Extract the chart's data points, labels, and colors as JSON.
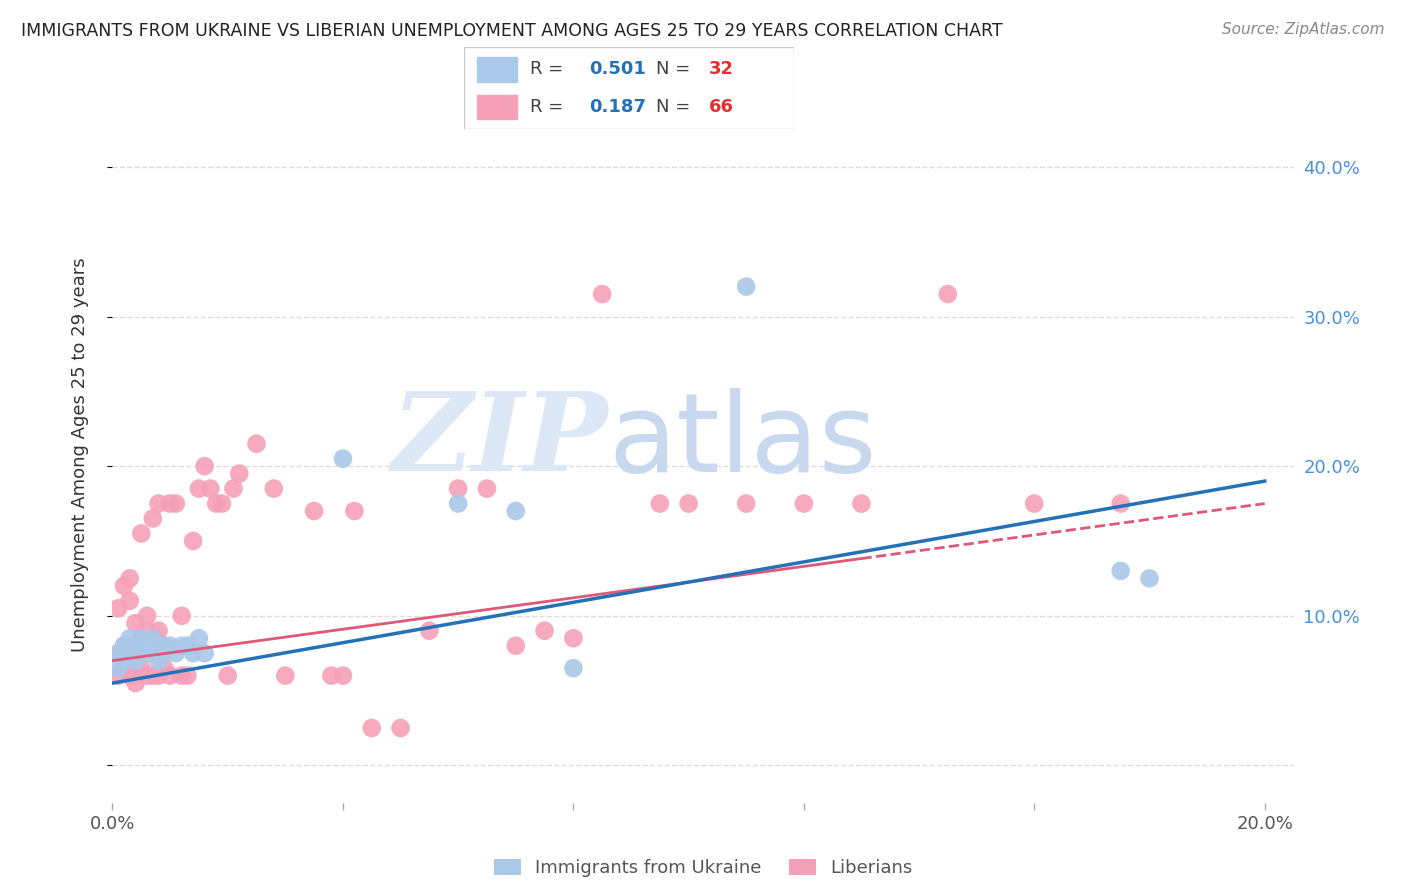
{
  "title": "IMMIGRANTS FROM UKRAINE VS LIBERIAN UNEMPLOYMENT AMONG AGES 25 TO 29 YEARS CORRELATION CHART",
  "source": "Source: ZipAtlas.com",
  "ylabel": "Unemployment Among Ages 25 to 29 years",
  "xlim": [
    0.0,
    0.205
  ],
  "ylim": [
    -0.025,
    0.44
  ],
  "xticks": [
    0.0,
    0.04,
    0.08,
    0.12,
    0.16,
    0.2
  ],
  "yticks": [
    0.0,
    0.1,
    0.2,
    0.3,
    0.4
  ],
  "legend_blue_R": "0.501",
  "legend_blue_N": "32",
  "legend_pink_R": "0.187",
  "legend_pink_N": "66",
  "blue_color": "#aac8e8",
  "pink_color": "#f5a0b8",
  "blue_line_color": "#2471b8",
  "pink_line_color": "#e05878",
  "ukraine_x": [
    0.001,
    0.001,
    0.002,
    0.002,
    0.003,
    0.003,
    0.004,
    0.004,
    0.005,
    0.005,
    0.006,
    0.006,
    0.007,
    0.007,
    0.008,
    0.008,
    0.009,
    0.009,
    0.01,
    0.011,
    0.012,
    0.013,
    0.014,
    0.015,
    0.016,
    0.04,
    0.06,
    0.07,
    0.08,
    0.11,
    0.175,
    0.18
  ],
  "ukraine_y": [
    0.065,
    0.075,
    0.07,
    0.08,
    0.075,
    0.085,
    0.07,
    0.08,
    0.075,
    0.085,
    0.075,
    0.08,
    0.08,
    0.085,
    0.07,
    0.075,
    0.08,
    0.075,
    0.08,
    0.075,
    0.08,
    0.08,
    0.075,
    0.085,
    0.075,
    0.205,
    0.175,
    0.17,
    0.065,
    0.32,
    0.13,
    0.125
  ],
  "liberian_x": [
    0.001,
    0.001,
    0.001,
    0.002,
    0.002,
    0.002,
    0.003,
    0.003,
    0.003,
    0.003,
    0.004,
    0.004,
    0.004,
    0.005,
    0.005,
    0.005,
    0.006,
    0.006,
    0.006,
    0.007,
    0.007,
    0.007,
    0.008,
    0.008,
    0.008,
    0.009,
    0.009,
    0.01,
    0.01,
    0.011,
    0.012,
    0.012,
    0.013,
    0.014,
    0.015,
    0.016,
    0.017,
    0.018,
    0.019,
    0.02,
    0.021,
    0.022,
    0.025,
    0.028,
    0.03,
    0.035,
    0.038,
    0.04,
    0.042,
    0.045,
    0.05,
    0.055,
    0.06,
    0.065,
    0.07,
    0.075,
    0.08,
    0.085,
    0.095,
    0.1,
    0.11,
    0.12,
    0.13,
    0.145,
    0.16,
    0.175
  ],
  "liberian_y": [
    0.06,
    0.075,
    0.105,
    0.065,
    0.08,
    0.12,
    0.06,
    0.075,
    0.11,
    0.125,
    0.055,
    0.075,
    0.095,
    0.065,
    0.085,
    0.155,
    0.06,
    0.09,
    0.1,
    0.06,
    0.085,
    0.165,
    0.06,
    0.09,
    0.175,
    0.065,
    0.08,
    0.06,
    0.175,
    0.175,
    0.06,
    0.1,
    0.06,
    0.15,
    0.185,
    0.2,
    0.185,
    0.175,
    0.175,
    0.06,
    0.185,
    0.195,
    0.215,
    0.185,
    0.06,
    0.17,
    0.06,
    0.06,
    0.17,
    0.025,
    0.025,
    0.09,
    0.185,
    0.185,
    0.08,
    0.09,
    0.085,
    0.315,
    0.175,
    0.175,
    0.175,
    0.175,
    0.175,
    0.315,
    0.175,
    0.175
  ],
  "blue_line_x0": 0.0,
  "blue_line_y0": 0.055,
  "blue_line_x1": 0.2,
  "blue_line_y1": 0.19,
  "pink_line_x0": 0.0,
  "pink_line_y0": 0.07,
  "pink_line_x1": 0.2,
  "pink_line_y1": 0.175,
  "background_color": "#ffffff",
  "grid_color": "#dddddd",
  "watermark_zip": "ZIP",
  "watermark_atlas": "atlas",
  "watermark_color_zip": "#dce8f5",
  "watermark_color_atlas": "#c8d8ee"
}
